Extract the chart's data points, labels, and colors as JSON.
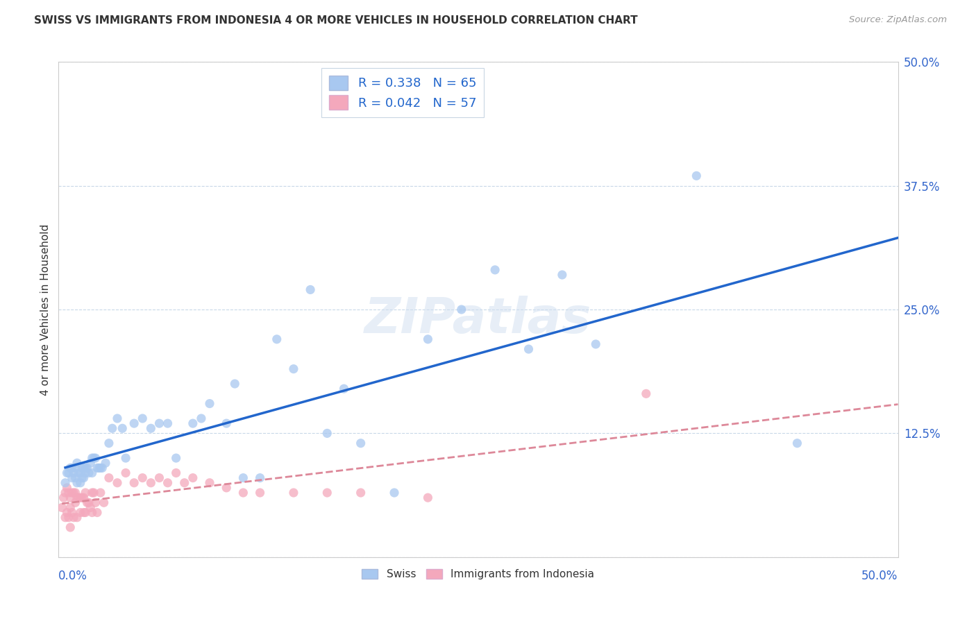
{
  "title": "SWISS VS IMMIGRANTS FROM INDONESIA 4 OR MORE VEHICLES IN HOUSEHOLD CORRELATION CHART",
  "source": "Source: ZipAtlas.com",
  "ylabel": "4 or more Vehicles in Household",
  "xlim": [
    0.0,
    0.5
  ],
  "ylim": [
    0.0,
    0.5
  ],
  "swiss_R": 0.338,
  "swiss_N": 65,
  "indonesia_R": 0.042,
  "indonesia_N": 57,
  "swiss_color": "#A8C8F0",
  "indonesia_color": "#F4A8BC",
  "swiss_line_color": "#2266CC",
  "indonesia_line_color": "#CC4466",
  "indonesia_line_dash_color": "#DD8899",
  "background_color": "#FFFFFF",
  "grid_color": "#C8D8E8",
  "title_color": "#333333",
  "axis_label_color": "#3366CC",
  "swiss_x": [
    0.004,
    0.005,
    0.006,
    0.007,
    0.008,
    0.008,
    0.009,
    0.01,
    0.01,
    0.011,
    0.011,
    0.012,
    0.013,
    0.013,
    0.014,
    0.014,
    0.015,
    0.015,
    0.016,
    0.016,
    0.017,
    0.018,
    0.019,
    0.02,
    0.02,
    0.021,
    0.022,
    0.023,
    0.024,
    0.025,
    0.026,
    0.028,
    0.03,
    0.032,
    0.035,
    0.038,
    0.04,
    0.045,
    0.05,
    0.055,
    0.06,
    0.065,
    0.07,
    0.08,
    0.085,
    0.09,
    0.1,
    0.105,
    0.11,
    0.12,
    0.13,
    0.14,
    0.15,
    0.16,
    0.17,
    0.18,
    0.2,
    0.22,
    0.24,
    0.26,
    0.28,
    0.3,
    0.32,
    0.38,
    0.44
  ],
  "swiss_y": [
    0.075,
    0.085,
    0.085,
    0.09,
    0.09,
    0.08,
    0.085,
    0.09,
    0.08,
    0.095,
    0.075,
    0.085,
    0.085,
    0.075,
    0.09,
    0.08,
    0.09,
    0.08,
    0.09,
    0.085,
    0.09,
    0.085,
    0.095,
    0.1,
    0.085,
    0.1,
    0.1,
    0.09,
    0.09,
    0.09,
    0.09,
    0.095,
    0.115,
    0.13,
    0.14,
    0.13,
    0.1,
    0.135,
    0.14,
    0.13,
    0.135,
    0.135,
    0.1,
    0.135,
    0.14,
    0.155,
    0.135,
    0.175,
    0.08,
    0.08,
    0.22,
    0.19,
    0.27,
    0.125,
    0.17,
    0.115,
    0.065,
    0.22,
    0.25,
    0.29,
    0.21,
    0.285,
    0.215,
    0.385,
    0.115
  ],
  "indonesia_x": [
    0.002,
    0.003,
    0.004,
    0.004,
    0.005,
    0.005,
    0.006,
    0.006,
    0.007,
    0.007,
    0.007,
    0.008,
    0.008,
    0.009,
    0.009,
    0.01,
    0.01,
    0.011,
    0.011,
    0.012,
    0.013,
    0.013,
    0.014,
    0.015,
    0.015,
    0.016,
    0.016,
    0.017,
    0.018,
    0.019,
    0.02,
    0.02,
    0.021,
    0.022,
    0.023,
    0.025,
    0.027,
    0.03,
    0.035,
    0.04,
    0.045,
    0.05,
    0.055,
    0.06,
    0.065,
    0.07,
    0.075,
    0.08,
    0.09,
    0.1,
    0.11,
    0.12,
    0.14,
    0.16,
    0.18,
    0.22,
    0.35
  ],
  "indonesia_y": [
    0.05,
    0.06,
    0.065,
    0.04,
    0.07,
    0.045,
    0.065,
    0.04,
    0.06,
    0.05,
    0.03,
    0.065,
    0.045,
    0.065,
    0.04,
    0.065,
    0.055,
    0.06,
    0.04,
    0.06,
    0.06,
    0.045,
    0.06,
    0.06,
    0.045,
    0.065,
    0.045,
    0.055,
    0.055,
    0.05,
    0.065,
    0.045,
    0.065,
    0.055,
    0.045,
    0.065,
    0.055,
    0.08,
    0.075,
    0.085,
    0.075,
    0.08,
    0.075,
    0.08,
    0.075,
    0.085,
    0.075,
    0.08,
    0.075,
    0.07,
    0.065,
    0.065,
    0.065,
    0.065,
    0.065,
    0.06,
    0.165
  ],
  "watermark_text": "ZIPatlas",
  "watermark_color": "#D0DFF0",
  "watermark_alpha": 0.5
}
